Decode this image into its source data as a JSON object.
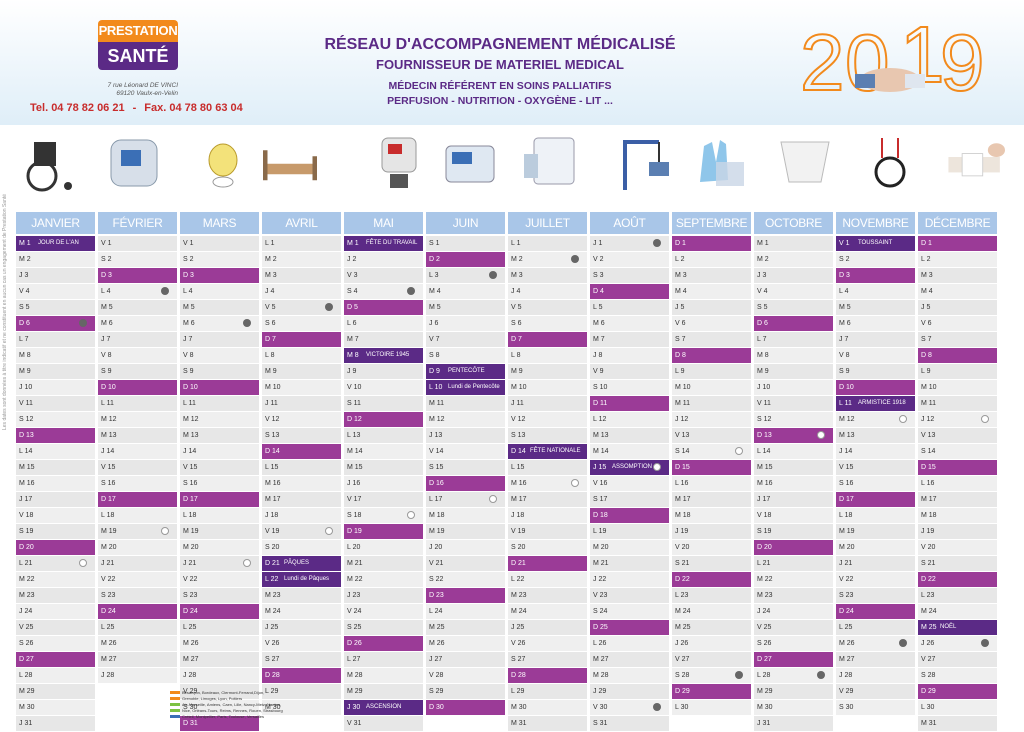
{
  "header": {
    "logo_line1": "PRESTATION",
    "logo_line2": "SANTÉ",
    "address_line1": "7 rue Léonard DE VINCI",
    "address_line2": "69120 Vaulx-en-Velin",
    "tel": "Tel. 04 78 82 06 21",
    "separator": "-",
    "fax": "Fax. 04 78 80 63 04",
    "title1": "RÉSEAU D'ACCOMPAGNEMENT MÉDICALISÉ",
    "title2": "FOURNISSEUR DE MATERIEL MEDICAL",
    "title3": "MÉDECIN RÉFÉRENT EN SOINS PALLIATIFS",
    "title4": "PERFUSION - NUTRITION - OXYGÈNE - LIT ...",
    "year_digits": [
      "2",
      "0",
      "1",
      "9"
    ]
  },
  "products": [
    "wheelchair-icon",
    "infusion-pump-icon",
    "oxygen-mask-icon",
    "medical-bed-icon",
    "feeding-pump-icon",
    "ventilator-icon",
    "suction-device-icon",
    "patient-lift-icon",
    "gloves-icon",
    "incontinence-brief-icon",
    "stethoscope-icon",
    "bandage-icon"
  ],
  "colors": {
    "sunday": "#9b3b97",
    "holiday": "#5b2a86",
    "header": "#a9c6e8",
    "zoneA": "#f28a1c",
    "zoneB": "#7cc242",
    "zoneC": "#3b6fb6"
  },
  "months": [
    {
      "name": "JANVIER",
      "days": 31,
      "start": 1,
      "events": {
        "1": "JOUR DE L'AN"
      },
      "holidays": [
        1
      ],
      "moons": {
        "6": "new",
        "21": "full"
      }
    },
    {
      "name": "FÉVRIER",
      "days": 28,
      "start": 4,
      "events": {},
      "holidays": [],
      "moons": {
        "4": "new",
        "19": "full"
      }
    },
    {
      "name": "MARS",
      "days": 31,
      "start": 4,
      "events": {},
      "holidays": [],
      "moons": {
        "6": "new",
        "21": "full"
      }
    },
    {
      "name": "AVRIL",
      "days": 30,
      "start": 0,
      "events": {
        "21": "PÂQUES",
        "22": "Lundi de Pâques"
      },
      "holidays": [
        21,
        22
      ],
      "moons": {
        "5": "new",
        "19": "full"
      }
    },
    {
      "name": "MAI",
      "days": 31,
      "start": 2,
      "events": {
        "1": "FÊTE DU TRAVAIL",
        "8": "VICTOIRE 1945",
        "30": "ASCENSION"
      },
      "holidays": [
        1,
        8,
        30
      ],
      "moons": {
        "4": "new",
        "18": "full"
      }
    },
    {
      "name": "JUIN",
      "days": 30,
      "start": 5,
      "events": {
        "9": "PENTECÔTE",
        "10": "Lundi de Pentecôte"
      },
      "holidays": [
        9,
        10
      ],
      "moons": {
        "3": "new",
        "17": "full"
      }
    },
    {
      "name": "JUILLET",
      "days": 31,
      "start": 0,
      "events": {
        "14": "FÊTE NATIONALE"
      },
      "holidays": [
        14
      ],
      "moons": {
        "2": "new",
        "16": "full"
      }
    },
    {
      "name": "AOÛT",
      "days": 31,
      "start": 3,
      "events": {
        "15": "ASSOMPTION"
      },
      "holidays": [
        15
      ],
      "moons": {
        "1": "new",
        "15": "full",
        "30": "new"
      }
    },
    {
      "name": "SEPTEMBRE",
      "days": 30,
      "start": 6,
      "events": {},
      "holidays": [],
      "moons": {
        "14": "full",
        "28": "new"
      }
    },
    {
      "name": "OCTOBRE",
      "days": 31,
      "start": 1,
      "events": {},
      "holidays": [],
      "moons": {
        "13": "full",
        "28": "new"
      }
    },
    {
      "name": "NOVEMBRE",
      "days": 30,
      "start": 4,
      "events": {
        "1": "TOUSSAINT",
        "11": "ARMISTICE 1918"
      },
      "holidays": [
        1,
        11
      ],
      "moons": {
        "12": "full",
        "26": "new"
      }
    },
    {
      "name": "DÉCEMBRE",
      "days": 31,
      "start": 6,
      "events": {
        "25": "NOËL"
      },
      "holidays": [
        25
      ],
      "moons": {
        "12": "full",
        "26": "new"
      }
    }
  ],
  "weekday_letters": [
    "L",
    "M",
    "M",
    "J",
    "V",
    "S",
    "D"
  ],
  "legend": [
    {
      "label": "Besançon, Bordeaux, Clermont-Ferrand,Dijon,",
      "color": "#f28a1c"
    },
    {
      "label": "Grenoble, Limoges, Lyon, Poitiers",
      "color": "#f28a1c"
    },
    {
      "label": "Aix-Marseille, Amiens, Caen, Lille, Nancy-Metz, Nantes,",
      "color": "#7cc242"
    },
    {
      "label": "Nice, Orléans-Tours, Reims, Rennes, Rouen, Strasbourg",
      "color": "#7cc242"
    },
    {
      "label": "Créteil, Montpellier, Paris, Toulouse, Versailles",
      "color": "#3b6fb6"
    }
  ],
  "side_text": "Les dates sont données à titre indicatif et ne constituent en aucun cas un engagement de Prestation Santé"
}
